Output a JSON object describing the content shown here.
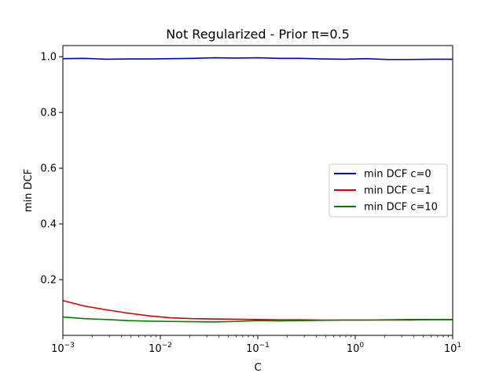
{
  "chart_data": {
    "type": "line",
    "title": "Not Regularized - Prior π=0.5",
    "xlabel": "C",
    "ylabel": "min DCF",
    "xscale": "log",
    "xlim": [
      0.001,
      10
    ],
    "ylim": [
      0.0,
      1.04
    ],
    "grid": false,
    "legend_position": "center-right",
    "x_ticks": [
      {
        "base": "10",
        "exp": "−3"
      },
      {
        "base": "10",
        "exp": "−2"
      },
      {
        "base": "10",
        "exp": "−1"
      },
      {
        "base": "10",
        "exp": "0"
      },
      {
        "base": "10",
        "exp": "1"
      }
    ],
    "y_ticks": [
      "0.2",
      "0.4",
      "0.6",
      "0.8",
      "1.0"
    ],
    "x": [
      0.001,
      0.00167,
      0.00278,
      0.00464,
      0.00774,
      0.0129,
      0.0215,
      0.0359,
      0.0599,
      0.1,
      0.167,
      0.278,
      0.464,
      0.774,
      1.29,
      2.15,
      3.59,
      5.99,
      10
    ],
    "series": [
      {
        "name": "min DCF c=0",
        "color": "#0000cc",
        "values": [
          0.993,
          0.994,
          0.991,
          0.992,
          0.992,
          0.993,
          0.994,
          0.996,
          0.995,
          0.996,
          0.994,
          0.994,
          0.992,
          0.991,
          0.993,
          0.99,
          0.99,
          0.991,
          0.991
        ]
      },
      {
        "name": "min DCF c=1",
        "color": "#dd0000",
        "values": [
          0.125,
          0.105,
          0.092,
          0.08,
          0.07,
          0.063,
          0.06,
          0.059,
          0.058,
          0.057,
          0.056,
          0.056,
          0.055,
          0.055,
          0.055,
          0.055,
          0.055,
          0.056,
          0.056
        ]
      },
      {
        "name": "min DCF c=10",
        "color": "#008000",
        "values": [
          0.066,
          0.06,
          0.057,
          0.053,
          0.051,
          0.05,
          0.049,
          0.048,
          0.05,
          0.053,
          0.052,
          0.053,
          0.054,
          0.055,
          0.055,
          0.056,
          0.057,
          0.057,
          0.057
        ]
      }
    ]
  }
}
